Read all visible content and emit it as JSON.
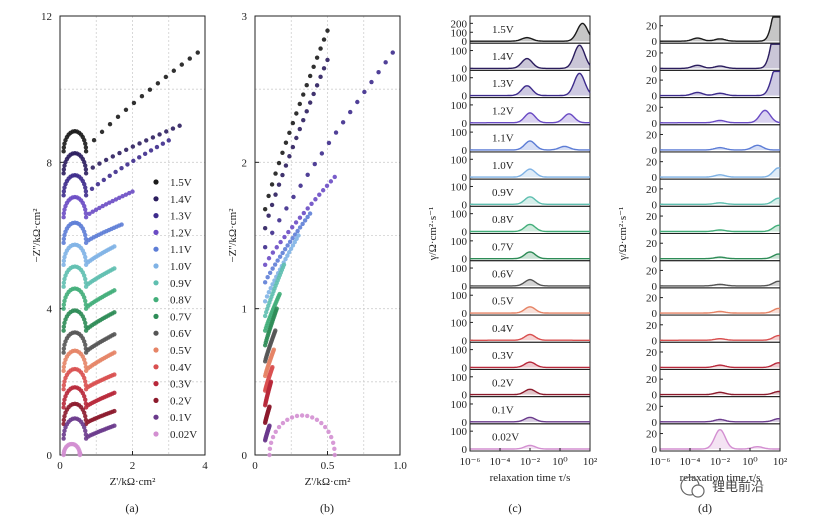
{
  "chart_data": [
    {
      "type": "scatter",
      "panel": "(a)",
      "xlabel": "Z'/kΩ·cm²",
      "ylabel": "−Z''/kΩ·cm²",
      "xlim": [
        0,
        4
      ],
      "ylim": [
        0,
        12
      ],
      "xticks": [
        "0",
        "2",
        "4"
      ],
      "yticks": [
        "0",
        "4",
        "8",
        "12"
      ],
      "legend_position": "right",
      "series_names": [
        "1.5V",
        "1.4V",
        "1.3V",
        "1.2V",
        "1.1V",
        "1.0V",
        "0.9V",
        "0.8V",
        "0.7V",
        "0.6V",
        "0.5V",
        "0.4V",
        "0.3V",
        "0.2V",
        "0.1V",
        "0.02V"
      ],
      "series": [
        {
          "name": "1.5V",
          "offset": 8.3,
          "arc_width": 0.62,
          "arc_height": 0.55,
          "tail_end": [
            3.8,
            11.0
          ]
        },
        {
          "name": "1.4V",
          "offset": 7.7,
          "arc_width": 0.62,
          "arc_height": 0.55,
          "tail_end": [
            3.3,
            9.0
          ]
        },
        {
          "name": "1.3V",
          "offset": 7.1,
          "arc_width": 0.62,
          "arc_height": 0.55,
          "tail_end": [
            3.0,
            8.6
          ]
        },
        {
          "name": "1.2V",
          "offset": 6.5,
          "arc_width": 0.62,
          "arc_height": 0.55,
          "tail_end": [
            2.0,
            7.2
          ]
        },
        {
          "name": "1.1V",
          "offset": 5.8,
          "arc_width": 0.62,
          "arc_height": 0.55,
          "tail_end": [
            1.7,
            6.3
          ]
        },
        {
          "name": "1.0V",
          "offset": 5.2,
          "arc_width": 0.62,
          "arc_height": 0.55,
          "tail_end": [
            1.5,
            5.7
          ]
        },
        {
          "name": "0.9V",
          "offset": 4.6,
          "arc_width": 0.62,
          "arc_height": 0.55,
          "tail_end": [
            1.5,
            5.1
          ]
        },
        {
          "name": "0.8V",
          "offset": 4.0,
          "arc_width": 0.62,
          "arc_height": 0.55,
          "tail_end": [
            1.5,
            4.5
          ]
        },
        {
          "name": "0.7V",
          "offset": 3.4,
          "arc_width": 0.62,
          "arc_height": 0.55,
          "tail_end": [
            1.5,
            3.9
          ]
        },
        {
          "name": "0.6V",
          "offset": 2.8,
          "arc_width": 0.62,
          "arc_height": 0.55,
          "tail_end": [
            1.5,
            3.3
          ]
        },
        {
          "name": "0.5V",
          "offset": 2.3,
          "arc_width": 0.62,
          "arc_height": 0.55,
          "tail_end": [
            1.5,
            2.8
          ]
        },
        {
          "name": "0.4V",
          "offset": 1.8,
          "arc_width": 0.62,
          "arc_height": 0.55,
          "tail_end": [
            1.5,
            2.2
          ]
        },
        {
          "name": "0.3V",
          "offset": 1.3,
          "arc_width": 0.62,
          "arc_height": 0.55,
          "tail_end": [
            1.5,
            1.7
          ]
        },
        {
          "name": "0.2V",
          "offset": 0.85,
          "arc_width": 0.62,
          "arc_height": 0.55,
          "tail_end": [
            1.5,
            1.2
          ]
        },
        {
          "name": "0.1V",
          "offset": 0.45,
          "arc_width": 0.62,
          "arc_height": 0.55,
          "tail_end": [
            1.5,
            0.8
          ]
        },
        {
          "name": "0.02V",
          "offset": 0.0,
          "arc_width": 0.45,
          "arc_height": 0.3,
          "tail_end": [
            0.55,
            0.05
          ]
        }
      ]
    },
    {
      "type": "scatter",
      "panel": "(b)",
      "xlabel": "Z'/kΩ·cm²",
      "ylabel": "−Z''/kΩ·cm²",
      "xlim": [
        0,
        1.0
      ],
      "ylim": [
        0,
        3
      ],
      "xticks": [
        "0",
        "0.5",
        "1.0"
      ],
      "yticks": [
        "0",
        "1",
        "2",
        "3"
      ],
      "series": [
        {
          "name": "1.5V",
          "offset": 1.68,
          "tail_end": [
            0.5,
            2.9
          ]
        },
        {
          "name": "1.4V",
          "offset": 1.55,
          "tail_end": [
            0.5,
            2.7
          ]
        },
        {
          "name": "1.3V",
          "offset": 1.42,
          "tail_end": [
            0.95,
            2.75
          ]
        },
        {
          "name": "1.2V",
          "offset": 1.3,
          "tail_end": [
            0.55,
            1.9
          ]
        },
        {
          "name": "1.1V",
          "offset": 1.18,
          "tail_end": [
            0.38,
            1.65
          ]
        },
        {
          "name": "1.0V",
          "offset": 1.05,
          "tail_end": [
            0.3,
            1.5
          ]
        },
        {
          "name": "0.9V",
          "offset": 0.95,
          "tail_end": [
            0.2,
            1.3
          ]
        },
        {
          "name": "0.8V",
          "offset": 0.85,
          "tail_end": [
            0.17,
            1.1
          ]
        },
        {
          "name": "0.7V",
          "offset": 0.75,
          "tail_end": [
            0.15,
            1.0
          ]
        },
        {
          "name": "0.6V",
          "offset": 0.64,
          "tail_end": [
            0.14,
            0.85
          ]
        },
        {
          "name": "0.5V",
          "offset": 0.54,
          "tail_end": [
            0.13,
            0.72
          ]
        },
        {
          "name": "0.4V",
          "offset": 0.44,
          "tail_end": [
            0.12,
            0.6
          ]
        },
        {
          "name": "0.3V",
          "offset": 0.34,
          "tail_end": [
            0.11,
            0.5
          ]
        },
        {
          "name": "0.2V",
          "offset": 0.22,
          "tail_end": [
            0.1,
            0.33
          ]
        },
        {
          "name": "0.1V",
          "offset": 0.1,
          "tail_end": [
            0.1,
            0.2
          ]
        },
        {
          "name": "0.02V",
          "offset": 0.0,
          "arc": [
            0.1,
            0.55,
            0.27
          ]
        }
      ]
    },
    {
      "type": "line",
      "panel": "(c)",
      "xlabel": "relaxation time τ/s",
      "ylabel": "γ/Ω·cm²·s⁻¹",
      "x_scale": "log",
      "xlim": [
        1e-06,
        100
      ],
      "xticks": [
        "10⁻⁶",
        "10⁻⁴",
        "10⁻²",
        "10⁰",
        "10²"
      ],
      "yticks_per_panel": [
        "0",
        "100"
      ],
      "top_panel_yticks": [
        "0",
        "100",
        "200"
      ],
      "panel_labels": [
        "1.5V",
        "1.4V",
        "1.3V",
        "1.2V",
        "1.1V",
        "1.0V",
        "0.9V",
        "0.8V",
        "0.7V",
        "0.6V",
        "0.5V",
        "0.4V",
        "0.3V",
        "0.2V",
        "0.1V",
        "0.02V"
      ],
      "peaks": [
        [
          [
            -2.2,
            40
          ],
          [
            1.5,
            200
          ]
        ],
        [
          [
            -2.2,
            55
          ],
          [
            1.3,
            130
          ]
        ],
        [
          [
            -2.2,
            55
          ],
          [
            1.3,
            125
          ]
        ],
        [
          [
            -2.0,
            55
          ],
          [
            0.6,
            50
          ]
        ],
        [
          [
            -2.0,
            50
          ],
          [
            0.3,
            20
          ]
        ],
        [
          [
            -2.0,
            45
          ]
        ],
        [
          [
            -2.0,
            42
          ]
        ],
        [
          [
            -2.0,
            40
          ]
        ],
        [
          [
            -2.0,
            38
          ]
        ],
        [
          [
            -2.0,
            35
          ]
        ],
        [
          [
            -2.0,
            35
          ]
        ],
        [
          [
            -2.0,
            32
          ]
        ],
        [
          [
            -2.0,
            30
          ]
        ],
        [
          [
            -2.0,
            30
          ]
        ],
        [
          [
            -2.0,
            25
          ]
        ],
        [
          [
            -2.0,
            20
          ]
        ]
      ]
    },
    {
      "type": "line",
      "panel": "(d)",
      "xlabel": "relaxation time τ/s",
      "ylabel": "γ/Ω·cm²·s⁻¹",
      "x_scale": "log",
      "xlim": [
        1e-06,
        100
      ],
      "xticks": [
        "10⁻⁶",
        "10⁻⁴",
        "10⁻²",
        "10⁰",
        "10²"
      ],
      "yticks_per_panel": [
        "0",
        "20"
      ],
      "panel_count": 16,
      "peaks": [
        [
          [
            -3.5,
            4
          ],
          [
            -2,
            3
          ],
          [
            1.9,
            60
          ]
        ],
        [
          [
            -3.5,
            4
          ],
          [
            -2,
            3
          ],
          [
            1.8,
            60
          ]
        ],
        [
          [
            -3.5,
            4
          ],
          [
            -2,
            3
          ],
          [
            1.8,
            40
          ]
        ],
        [
          [
            -2,
            3
          ],
          [
            1.0,
            16
          ]
        ],
        [
          [
            -2,
            3
          ],
          [
            0.5,
            6
          ]
        ],
        [
          [
            -2,
            3
          ],
          [
            1.9,
            12
          ]
        ],
        [
          [
            -2,
            2
          ],
          [
            1.9,
            8
          ]
        ],
        [
          [
            -2,
            2
          ],
          [
            1.9,
            8
          ]
        ],
        [
          [
            -2,
            2
          ],
          [
            1.9,
            6
          ]
        ],
        [
          [
            -2,
            2
          ],
          [
            1.9,
            6
          ]
        ],
        [
          [
            -2,
            2
          ],
          [
            1.9,
            6
          ]
        ],
        [
          [
            -2,
            2
          ],
          [
            1.9,
            6
          ]
        ],
        [
          [
            -2,
            3
          ],
          [
            1.9,
            6
          ]
        ],
        [
          [
            -2,
            3
          ],
          [
            1.9,
            4
          ]
        ],
        [
          [
            -2,
            3
          ],
          [
            1.9,
            4
          ]
        ],
        [
          [
            -2,
            25
          ],
          [
            0.5,
            3
          ]
        ]
      ]
    }
  ],
  "series_colors": [
    "#1a1a1a",
    "#2b1d5e",
    "#3d2b8c",
    "#6a4bc4",
    "#5d7dd6",
    "#7fb2e5",
    "#5fbfb0",
    "#43ae7a",
    "#2e8c57",
    "#555555",
    "#e68466",
    "#d95050",
    "#b8283a",
    "#8c1a2c",
    "#6a3a8c",
    "#d38fd1"
  ],
  "subfigure_labels": [
    "(a)",
    "(b)",
    "(c)",
    "(d)"
  ],
  "watermark": "锂电前沿"
}
